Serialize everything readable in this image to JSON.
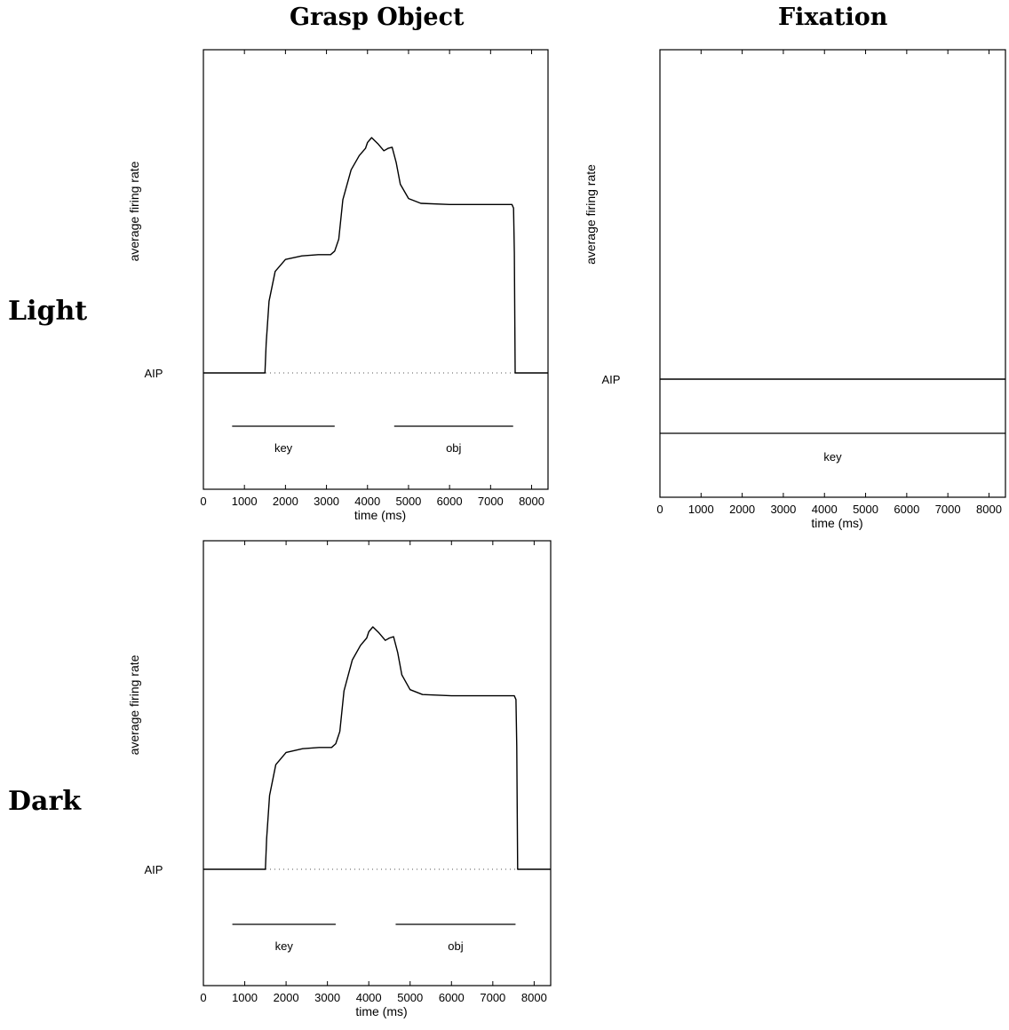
{
  "column_titles": {
    "left": "Grasp Object",
    "right": "Fixation"
  },
  "row_titles": {
    "top": "Light",
    "bottom": "Dark"
  },
  "chart_data": [
    {
      "type": "line",
      "condition": "Grasp Object / Light",
      "ylabel": "average firing rate",
      "xlabel": "time (ms)",
      "xlim": [
        0,
        8400
      ],
      "xticks": [
        0,
        1000,
        2000,
        3000,
        4000,
        5000,
        6000,
        7000,
        8000
      ],
      "baseline_label": "AIP",
      "series": [
        {
          "name": "AIP",
          "x": [
            0,
            1500,
            1530,
            1600,
            1750,
            2000,
            2400,
            2800,
            3100,
            3200,
            3300,
            3400,
            3600,
            3800,
            3950,
            4000,
            4100,
            4250,
            4400,
            4500,
            4600,
            4700,
            4800,
            5000,
            5300,
            6000,
            6500,
            7000,
            7400,
            7520,
            7560,
            7580,
            7600,
            8400
          ],
          "y": [
            0,
            0,
            0.25,
            0.6,
            0.85,
            0.95,
            0.98,
            0.99,
            0.99,
            1.02,
            1.12,
            1.45,
            1.7,
            1.82,
            1.88,
            1.93,
            1.97,
            1.92,
            1.86,
            1.88,
            1.89,
            1.76,
            1.58,
            1.46,
            1.42,
            1.41,
            1.41,
            1.41,
            1.41,
            1.41,
            1.38,
            1.0,
            0,
            0
          ]
        }
      ],
      "event_bars": [
        {
          "label": "key",
          "start": 700,
          "end": 3200
        },
        {
          "label": "obj",
          "start": 4650,
          "end": 7550
        }
      ]
    },
    {
      "type": "line",
      "condition": "Fixation / Light",
      "ylabel": "average firing rate",
      "xlabel": "time (ms)",
      "xlim": [
        0,
        8400
      ],
      "xticks": [
        0,
        1000,
        2000,
        3000,
        4000,
        5000,
        6000,
        7000,
        8000
      ],
      "baseline_label": "AIP",
      "series": [
        {
          "name": "AIP",
          "x": [
            0,
            8400
          ],
          "y": [
            0,
            0
          ]
        }
      ],
      "event_bars": [
        {
          "label": "key",
          "start": 0,
          "end": 8400
        }
      ]
    },
    {
      "type": "line",
      "condition": "Grasp Object / Dark",
      "ylabel": "average firing rate",
      "xlabel": "time (ms)",
      "xlim": [
        0,
        8400
      ],
      "xticks": [
        0,
        1000,
        2000,
        3000,
        4000,
        5000,
        6000,
        7000,
        8000
      ],
      "baseline_label": "AIP",
      "series": [
        {
          "name": "AIP",
          "x": [
            0,
            1500,
            1530,
            1600,
            1750,
            2000,
            2400,
            2800,
            3100,
            3200,
            3300,
            3400,
            3600,
            3800,
            3950,
            4000,
            4100,
            4250,
            4400,
            4500,
            4600,
            4700,
            4800,
            5000,
            5300,
            6000,
            6500,
            7000,
            7400,
            7520,
            7560,
            7580,
            7600,
            8400
          ],
          "y": [
            0,
            0,
            0.25,
            0.6,
            0.85,
            0.95,
            0.98,
            0.99,
            0.99,
            1.02,
            1.12,
            1.45,
            1.7,
            1.82,
            1.88,
            1.93,
            1.97,
            1.92,
            1.86,
            1.88,
            1.89,
            1.76,
            1.58,
            1.46,
            1.42,
            1.41,
            1.41,
            1.41,
            1.41,
            1.41,
            1.38,
            1.0,
            0,
            0
          ]
        }
      ],
      "event_bars": [
        {
          "label": "key",
          "start": 700,
          "end": 3200
        },
        {
          "label": "obj",
          "start": 4650,
          "end": 7550
        }
      ]
    }
  ]
}
